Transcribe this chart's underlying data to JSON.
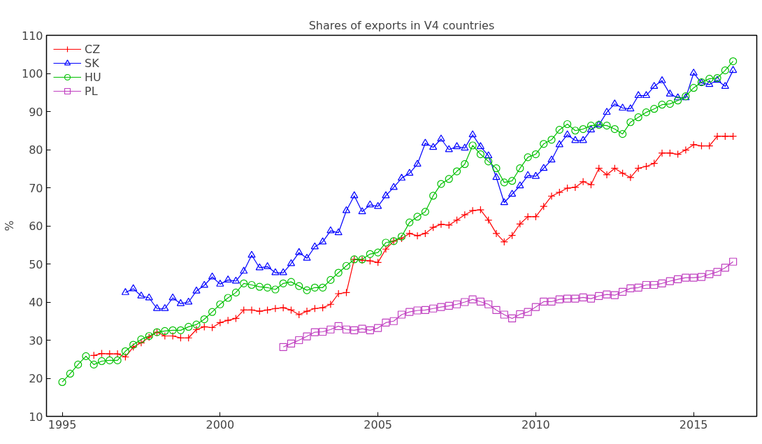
{
  "chart_data": {
    "type": "line",
    "title": "Shares of exports in V4 countries",
    "ylabel": "%",
    "xlim": [
      1994.5,
      2017
    ],
    "ylim": [
      10,
      110
    ],
    "xticks": [
      1995,
      2000,
      2005,
      2010,
      2015
    ],
    "yticks": [
      10,
      20,
      30,
      40,
      50,
      60,
      70,
      80,
      90,
      100,
      110
    ],
    "grid": false,
    "legend": "top left",
    "line_style": "solid",
    "series": [
      {
        "name": "CZ",
        "color": "#ff0000",
        "marker": "cross",
        "x": [
          1996,
          1996.25,
          1996.5,
          1996.75,
          1997,
          1997.25,
          1997.5,
          1997.75,
          1998,
          1998.25,
          1998.5,
          1998.75,
          1999,
          1999.25,
          1999.5,
          1999.75,
          2000,
          2000.25,
          2000.5,
          2000.75,
          2001,
          2001.25,
          2001.5,
          2001.75,
          2002,
          2002.25,
          2002.5,
          2002.75,
          2003,
          2003.25,
          2003.5,
          2003.75,
          2004,
          2004.25,
          2004.5,
          2004.75,
          2005,
          2005.25,
          2005.5,
          2005.75,
          2006,
          2006.25,
          2006.5,
          2006.75,
          2007,
          2007.25,
          2007.5,
          2007.75,
          2008,
          2008.25,
          2008.5,
          2008.75,
          2009,
          2009.25,
          2009.5,
          2009.75,
          2010,
          2010.25,
          2010.5,
          2010.75,
          2011,
          2011.25,
          2011.5,
          2011.75,
          2012,
          2012.25,
          2012.5,
          2012.75,
          2013,
          2013.25,
          2013.5,
          2013.75,
          2014,
          2014.25,
          2014.5,
          2014.75,
          2015,
          2015.25,
          2015.5,
          2015.75,
          2016,
          2016.25
        ],
        "values": [
          26.0,
          26.5,
          26.4,
          26.4,
          25.6,
          28.2,
          29.3,
          30.8,
          32.1,
          31.1,
          31.1,
          30.6,
          30.6,
          32.8,
          33.5,
          33.3,
          34.6,
          35.2,
          35.7,
          37.9,
          37.9,
          37.6,
          37.9,
          38.3,
          38.5,
          37.9,
          36.7,
          37.6,
          38.3,
          38.5,
          39.4,
          42.2,
          42.5,
          51.2,
          51.0,
          50.8,
          50.4,
          53.9,
          56.0,
          56.7,
          58.0,
          57.4,
          58.0,
          59.6,
          60.4,
          60.2,
          61.5,
          62.9,
          64.0,
          64.2,
          61.5,
          58.0,
          55.8,
          57.5,
          60.5,
          62.4,
          62.4,
          65.1,
          67.8,
          68.8,
          69.9,
          70.1,
          71.6,
          70.8,
          75.1,
          73.4,
          75.1,
          73.8,
          72.7,
          75.1,
          75.6,
          76.4,
          79.1,
          79.1,
          78.8,
          79.9,
          81.3,
          81.0,
          81.0,
          83.5,
          83.5,
          83.5
        ]
      },
      {
        "name": "SK",
        "color": "#0000ff",
        "marker": "triangle",
        "x": [
          1997,
          1997.25,
          1997.5,
          1997.75,
          1998,
          1998.25,
          1998.5,
          1998.75,
          1999,
          1999.25,
          1999.5,
          1999.75,
          2000,
          2000.25,
          2000.5,
          2000.75,
          2001,
          2001.25,
          2001.5,
          2001.75,
          2002,
          2002.25,
          2002.5,
          2002.75,
          2003,
          2003.25,
          2003.5,
          2003.75,
          2004,
          2004.25,
          2004.5,
          2004.75,
          2005,
          2005.25,
          2005.5,
          2005.75,
          2006,
          2006.25,
          2006.5,
          2006.75,
          2007,
          2007.25,
          2007.5,
          2007.75,
          2008,
          2008.25,
          2008.5,
          2008.75,
          2009,
          2009.25,
          2009.5,
          2009.75,
          2010,
          2010.25,
          2010.5,
          2010.75,
          2011,
          2011.25,
          2011.5,
          2011.75,
          2012,
          2012.25,
          2012.5,
          2012.75,
          2013,
          2013.25,
          2013.5,
          2013.75,
          2014,
          2014.25,
          2014.5,
          2014.75,
          2015,
          2015.25,
          2015.5,
          2015.75,
          2016,
          2016.25
        ],
        "values": [
          42.5,
          43.5,
          41.6,
          41.1,
          38.3,
          38.3,
          41.1,
          39.6,
          40.0,
          42.9,
          44.4,
          46.6,
          44.7,
          45.8,
          45.5,
          48.1,
          52.3,
          49.0,
          49.3,
          47.7,
          47.7,
          50.1,
          53.0,
          51.5,
          54.5,
          55.8,
          58.7,
          58.2,
          64.0,
          67.9,
          63.7,
          65.5,
          65.1,
          67.9,
          70.1,
          72.5,
          73.8,
          76.2,
          81.7,
          80.6,
          82.8,
          80.0,
          80.8,
          80.4,
          83.9,
          80.8,
          78.4,
          72.7,
          66.1,
          68.3,
          70.5,
          73.2,
          73.0,
          75.1,
          77.3,
          81.3,
          83.9,
          82.4,
          82.4,
          85.2,
          86.5,
          89.8,
          92.0,
          90.9,
          90.7,
          94.2,
          94.2,
          96.6,
          98.1,
          94.6,
          93.6,
          93.6,
          100.1,
          97.5,
          97.1,
          98.2,
          96.6,
          100.8
        ]
      },
      {
        "name": "HU",
        "color": "#00c000",
        "marker": "circle",
        "x": [
          1995,
          1995.25,
          1995.5,
          1995.75,
          1996,
          1996.25,
          1996.5,
          1996.75,
          1997,
          1997.25,
          1997.5,
          1997.75,
          1998,
          1998.25,
          1998.5,
          1998.75,
          1999,
          1999.25,
          1999.5,
          1999.75,
          2000,
          2000.25,
          2000.5,
          2000.75,
          2001,
          2001.25,
          2001.5,
          2001.75,
          2002,
          2002.25,
          2002.5,
          2002.75,
          2003,
          2003.25,
          2003.5,
          2003.75,
          2004,
          2004.25,
          2004.5,
          2004.75,
          2005,
          2005.25,
          2005.5,
          2005.75,
          2006,
          2006.25,
          2006.5,
          2006.75,
          2007,
          2007.25,
          2007.5,
          2007.75,
          2008,
          2008.25,
          2008.5,
          2008.75,
          2009,
          2009.25,
          2009.5,
          2009.75,
          2010,
          2010.25,
          2010.5,
          2010.75,
          2011,
          2011.25,
          2011.5,
          2011.75,
          2012,
          2012.25,
          2012.5,
          2012.75,
          2013,
          2013.25,
          2013.5,
          2013.75,
          2014,
          2014.25,
          2014.5,
          2014.75,
          2015,
          2015.25,
          2015.5,
          2015.75,
          2016,
          2016.25
        ],
        "values": [
          19.0,
          21.2,
          23.6,
          25.8,
          23.6,
          24.5,
          24.7,
          24.7,
          27.1,
          28.8,
          30.2,
          31.1,
          32.1,
          32.4,
          32.6,
          32.6,
          33.5,
          34.1,
          35.5,
          37.4,
          39.4,
          41.1,
          42.5,
          44.9,
          44.5,
          44.0,
          43.8,
          43.3,
          44.9,
          45.3,
          44.2,
          43.1,
          43.8,
          43.8,
          45.8,
          47.7,
          49.5,
          51.2,
          51.2,
          52.6,
          53.0,
          55.6,
          56.0,
          57.2,
          60.9,
          62.4,
          63.7,
          67.9,
          71.0,
          72.3,
          74.3,
          76.2,
          81.1,
          78.8,
          76.9,
          75.1,
          71.4,
          71.8,
          75.1,
          78.0,
          78.8,
          81.5,
          82.6,
          85.2,
          86.7,
          85.0,
          85.4,
          86.3,
          86.5,
          86.3,
          85.4,
          84.1,
          87.2,
          88.5,
          89.8,
          90.7,
          91.8,
          92.0,
          92.9,
          94.0,
          96.2,
          97.7,
          98.6,
          98.8,
          100.8,
          103.2
        ]
      },
      {
        "name": "PL",
        "color": "#c040c0",
        "marker": "square",
        "x": [
          2002,
          2002.25,
          2002.5,
          2002.75,
          2003,
          2003.25,
          2003.5,
          2003.75,
          2004,
          2004.25,
          2004.5,
          2004.75,
          2005,
          2005.25,
          2005.5,
          2005.75,
          2006,
          2006.25,
          2006.5,
          2006.75,
          2007,
          2007.25,
          2007.5,
          2007.75,
          2008,
          2008.25,
          2008.5,
          2008.75,
          2009,
          2009.25,
          2009.5,
          2009.75,
          2010,
          2010.25,
          2010.5,
          2010.75,
          2011,
          2011.25,
          2011.5,
          2011.75,
          2012,
          2012.25,
          2012.5,
          2012.75,
          2013,
          2013.25,
          2013.5,
          2013.75,
          2014,
          2014.25,
          2014.5,
          2014.75,
          2015,
          2015.25,
          2015.5,
          2015.75,
          2016,
          2016.25
        ],
        "values": [
          28.2,
          29.1,
          30.0,
          31.0,
          32.1,
          32.2,
          32.8,
          33.7,
          32.8,
          32.6,
          33.0,
          32.6,
          33.2,
          34.6,
          35.0,
          36.7,
          37.4,
          37.8,
          37.9,
          38.3,
          38.7,
          39.0,
          39.4,
          40.0,
          40.7,
          40.1,
          39.4,
          37.9,
          36.7,
          35.7,
          36.8,
          37.4,
          38.7,
          40.1,
          40.1,
          40.7,
          40.9,
          40.9,
          41.2,
          40.9,
          41.6,
          42.0,
          41.8,
          42.7,
          43.6,
          43.8,
          44.5,
          44.5,
          44.9,
          45.5,
          46.0,
          46.4,
          46.4,
          46.6,
          47.3,
          47.9,
          49.0,
          50.6
        ]
      }
    ]
  }
}
